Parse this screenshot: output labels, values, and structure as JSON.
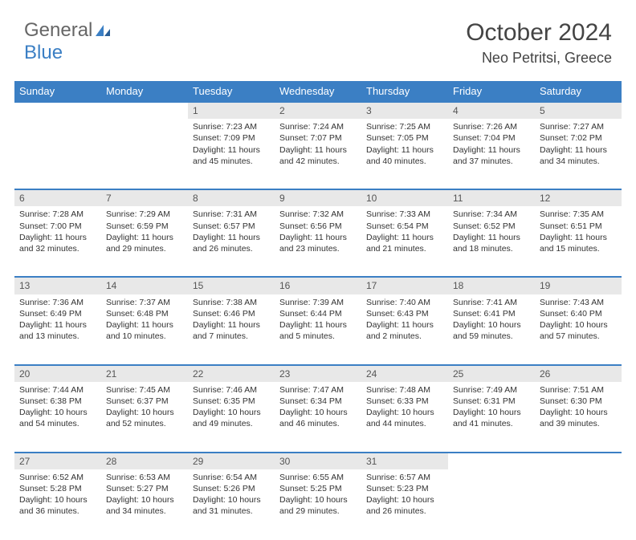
{
  "header": {
    "logo_general": "General",
    "logo_blue": "Blue",
    "month_title": "October 2024",
    "location": "Neo Petritsi, Greece"
  },
  "colors": {
    "header_bg": "#3b7fc4",
    "header_text": "#ffffff",
    "daynum_bg": "#e8e8e8",
    "border": "#3b7fc4",
    "body_text": "#333333",
    "logo_gray": "#666666",
    "logo_blue": "#3b7fc4"
  },
  "weekdays": [
    "Sunday",
    "Monday",
    "Tuesday",
    "Wednesday",
    "Thursday",
    "Friday",
    "Saturday"
  ],
  "weeks": [
    {
      "nums": [
        "",
        "",
        "1",
        "2",
        "3",
        "4",
        "5"
      ],
      "cells": [
        {
          "empty": true
        },
        {
          "empty": true
        },
        {
          "sunrise": "Sunrise: 7:23 AM",
          "sunset": "Sunset: 7:09 PM",
          "day1": "Daylight: 11 hours",
          "day2": "and 45 minutes."
        },
        {
          "sunrise": "Sunrise: 7:24 AM",
          "sunset": "Sunset: 7:07 PM",
          "day1": "Daylight: 11 hours",
          "day2": "and 42 minutes."
        },
        {
          "sunrise": "Sunrise: 7:25 AM",
          "sunset": "Sunset: 7:05 PM",
          "day1": "Daylight: 11 hours",
          "day2": "and 40 minutes."
        },
        {
          "sunrise": "Sunrise: 7:26 AM",
          "sunset": "Sunset: 7:04 PM",
          "day1": "Daylight: 11 hours",
          "day2": "and 37 minutes."
        },
        {
          "sunrise": "Sunrise: 7:27 AM",
          "sunset": "Sunset: 7:02 PM",
          "day1": "Daylight: 11 hours",
          "day2": "and 34 minutes."
        }
      ]
    },
    {
      "nums": [
        "6",
        "7",
        "8",
        "9",
        "10",
        "11",
        "12"
      ],
      "cells": [
        {
          "sunrise": "Sunrise: 7:28 AM",
          "sunset": "Sunset: 7:00 PM",
          "day1": "Daylight: 11 hours",
          "day2": "and 32 minutes."
        },
        {
          "sunrise": "Sunrise: 7:29 AM",
          "sunset": "Sunset: 6:59 PM",
          "day1": "Daylight: 11 hours",
          "day2": "and 29 minutes."
        },
        {
          "sunrise": "Sunrise: 7:31 AM",
          "sunset": "Sunset: 6:57 PM",
          "day1": "Daylight: 11 hours",
          "day2": "and 26 minutes."
        },
        {
          "sunrise": "Sunrise: 7:32 AM",
          "sunset": "Sunset: 6:56 PM",
          "day1": "Daylight: 11 hours",
          "day2": "and 23 minutes."
        },
        {
          "sunrise": "Sunrise: 7:33 AM",
          "sunset": "Sunset: 6:54 PM",
          "day1": "Daylight: 11 hours",
          "day2": "and 21 minutes."
        },
        {
          "sunrise": "Sunrise: 7:34 AM",
          "sunset": "Sunset: 6:52 PM",
          "day1": "Daylight: 11 hours",
          "day2": "and 18 minutes."
        },
        {
          "sunrise": "Sunrise: 7:35 AM",
          "sunset": "Sunset: 6:51 PM",
          "day1": "Daylight: 11 hours",
          "day2": "and 15 minutes."
        }
      ]
    },
    {
      "nums": [
        "13",
        "14",
        "15",
        "16",
        "17",
        "18",
        "19"
      ],
      "cells": [
        {
          "sunrise": "Sunrise: 7:36 AM",
          "sunset": "Sunset: 6:49 PM",
          "day1": "Daylight: 11 hours",
          "day2": "and 13 minutes."
        },
        {
          "sunrise": "Sunrise: 7:37 AM",
          "sunset": "Sunset: 6:48 PM",
          "day1": "Daylight: 11 hours",
          "day2": "and 10 minutes."
        },
        {
          "sunrise": "Sunrise: 7:38 AM",
          "sunset": "Sunset: 6:46 PM",
          "day1": "Daylight: 11 hours",
          "day2": "and 7 minutes."
        },
        {
          "sunrise": "Sunrise: 7:39 AM",
          "sunset": "Sunset: 6:44 PM",
          "day1": "Daylight: 11 hours",
          "day2": "and 5 minutes."
        },
        {
          "sunrise": "Sunrise: 7:40 AM",
          "sunset": "Sunset: 6:43 PM",
          "day1": "Daylight: 11 hours",
          "day2": "and 2 minutes."
        },
        {
          "sunrise": "Sunrise: 7:41 AM",
          "sunset": "Sunset: 6:41 PM",
          "day1": "Daylight: 10 hours",
          "day2": "and 59 minutes."
        },
        {
          "sunrise": "Sunrise: 7:43 AM",
          "sunset": "Sunset: 6:40 PM",
          "day1": "Daylight: 10 hours",
          "day2": "and 57 minutes."
        }
      ]
    },
    {
      "nums": [
        "20",
        "21",
        "22",
        "23",
        "24",
        "25",
        "26"
      ],
      "cells": [
        {
          "sunrise": "Sunrise: 7:44 AM",
          "sunset": "Sunset: 6:38 PM",
          "day1": "Daylight: 10 hours",
          "day2": "and 54 minutes."
        },
        {
          "sunrise": "Sunrise: 7:45 AM",
          "sunset": "Sunset: 6:37 PM",
          "day1": "Daylight: 10 hours",
          "day2": "and 52 minutes."
        },
        {
          "sunrise": "Sunrise: 7:46 AM",
          "sunset": "Sunset: 6:35 PM",
          "day1": "Daylight: 10 hours",
          "day2": "and 49 minutes."
        },
        {
          "sunrise": "Sunrise: 7:47 AM",
          "sunset": "Sunset: 6:34 PM",
          "day1": "Daylight: 10 hours",
          "day2": "and 46 minutes."
        },
        {
          "sunrise": "Sunrise: 7:48 AM",
          "sunset": "Sunset: 6:33 PM",
          "day1": "Daylight: 10 hours",
          "day2": "and 44 minutes."
        },
        {
          "sunrise": "Sunrise: 7:49 AM",
          "sunset": "Sunset: 6:31 PM",
          "day1": "Daylight: 10 hours",
          "day2": "and 41 minutes."
        },
        {
          "sunrise": "Sunrise: 7:51 AM",
          "sunset": "Sunset: 6:30 PM",
          "day1": "Daylight: 10 hours",
          "day2": "and 39 minutes."
        }
      ]
    },
    {
      "nums": [
        "27",
        "28",
        "29",
        "30",
        "31",
        "",
        ""
      ],
      "cells": [
        {
          "sunrise": "Sunrise: 6:52 AM",
          "sunset": "Sunset: 5:28 PM",
          "day1": "Daylight: 10 hours",
          "day2": "and 36 minutes."
        },
        {
          "sunrise": "Sunrise: 6:53 AM",
          "sunset": "Sunset: 5:27 PM",
          "day1": "Daylight: 10 hours",
          "day2": "and 34 minutes."
        },
        {
          "sunrise": "Sunrise: 6:54 AM",
          "sunset": "Sunset: 5:26 PM",
          "day1": "Daylight: 10 hours",
          "day2": "and 31 minutes."
        },
        {
          "sunrise": "Sunrise: 6:55 AM",
          "sunset": "Sunset: 5:25 PM",
          "day1": "Daylight: 10 hours",
          "day2": "and 29 minutes."
        },
        {
          "sunrise": "Sunrise: 6:57 AM",
          "sunset": "Sunset: 5:23 PM",
          "day1": "Daylight: 10 hours",
          "day2": "and 26 minutes."
        },
        {
          "empty": true
        },
        {
          "empty": true
        }
      ]
    }
  ]
}
